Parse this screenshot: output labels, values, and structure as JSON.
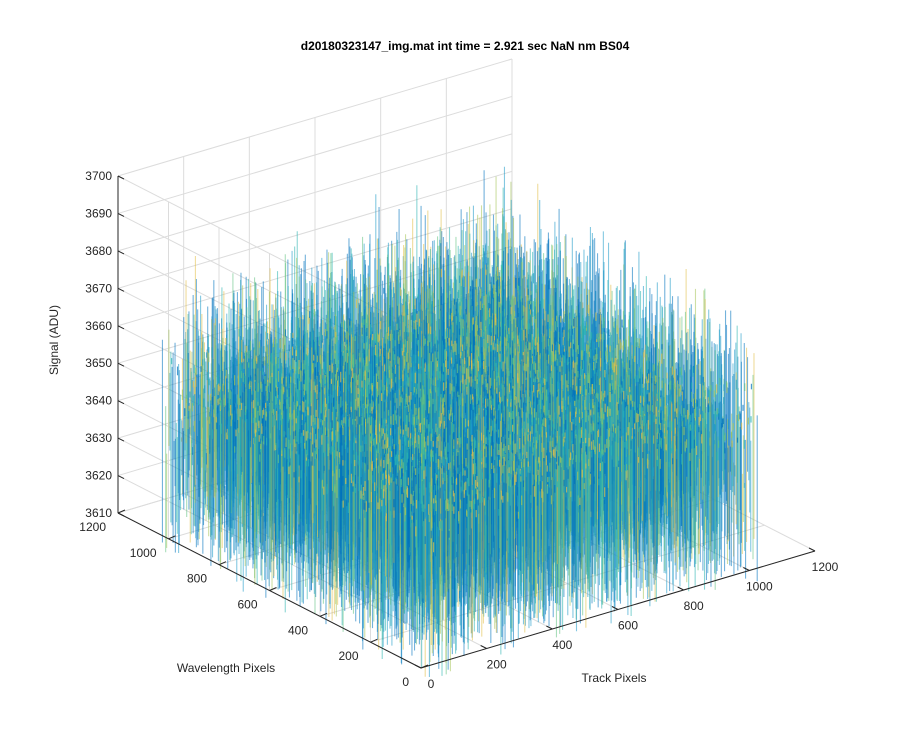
{
  "chart_data": {
    "type": "surface",
    "title": "d20180323147_img.mat int time = 2.921 sec  NaN nm BS04",
    "xlabel": "Track Pixels",
    "ylabel": "Wavelength Pixels",
    "zlabel": "Signal (ADU)",
    "xlim": [
      0,
      1200
    ],
    "ylim": [
      0,
      1200
    ],
    "zlim": [
      3610,
      3700
    ],
    "x_ticks": [
      "0",
      "200",
      "400",
      "600",
      "800",
      "1000",
      "1200"
    ],
    "y_ticks": [
      "0",
      "200",
      "400",
      "600",
      "800",
      "1000",
      "1200"
    ],
    "z_ticks": [
      "3610",
      "3620",
      "3630",
      "3640",
      "3650",
      "3660",
      "3670",
      "3680",
      "3690",
      "3700"
    ],
    "x_extent": [
      0,
      1024
    ],
    "y_extent": [
      0,
      1024
    ],
    "signal_mean": 3650,
    "signal_range": [
      3615,
      3690
    ],
    "grid": true,
    "colormap": [
      "#0072bd",
      "#1f9bc8",
      "#2cb5b0",
      "#64c283",
      "#a5c45a",
      "#e2c04a"
    ]
  }
}
